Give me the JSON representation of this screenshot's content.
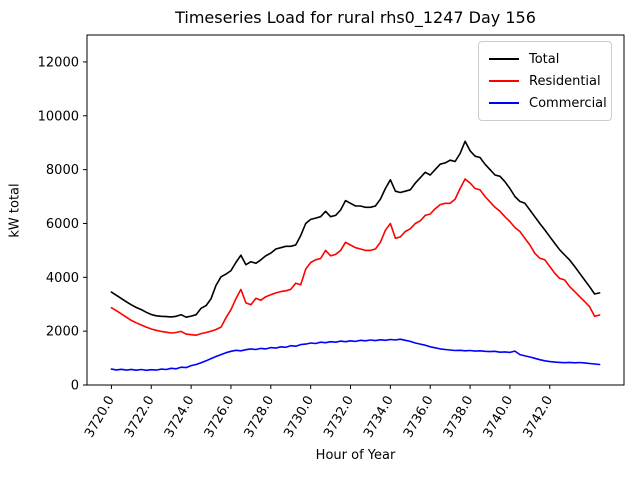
{
  "chart_data": {
    "type": "line",
    "title": "Timeseries Load for rural rhs0_1247  Day 156",
    "xlabel": "Hour of Year",
    "ylabel": "kW total",
    "xlim": [
      3718.775,
      3745.725
    ],
    "ylim": [
      0,
      13000
    ],
    "grid": false,
    "legend_position": "upper right",
    "xticks": [
      3720,
      3722,
      3724,
      3726,
      3728,
      3730,
      3732,
      3734,
      3736,
      3738,
      3740,
      3742
    ],
    "xtick_labels": [
      "3720.0",
      "3722.0",
      "3724.0",
      "3726.0",
      "3728.0",
      "3730.0",
      "3732.0",
      "3734.0",
      "3736.0",
      "3738.0",
      "3740.0",
      "3742.0"
    ],
    "yticks": [
      0,
      2000,
      4000,
      6000,
      8000,
      10000,
      12000
    ],
    "ytick_labels": [
      "0",
      "2000",
      "4000",
      "6000",
      "8000",
      "10000",
      "12000"
    ],
    "x": [
      3720.0,
      3720.25,
      3720.5,
      3720.75,
      3721.0,
      3721.25,
      3721.5,
      3721.75,
      3722.0,
      3722.25,
      3722.5,
      3722.75,
      3723.0,
      3723.25,
      3723.5,
      3723.75,
      3724.0,
      3724.25,
      3724.5,
      3724.75,
      3725.0,
      3725.25,
      3725.5,
      3725.75,
      3726.0,
      3726.25,
      3726.5,
      3726.75,
      3727.0,
      3727.25,
      3727.5,
      3727.75,
      3728.0,
      3728.25,
      3728.5,
      3728.75,
      3729.0,
      3729.25,
      3729.5,
      3729.75,
      3730.0,
      3730.25,
      3730.5,
      3730.75,
      3731.0,
      3731.25,
      3731.5,
      3731.75,
      3732.0,
      3732.25,
      3732.5,
      3732.75,
      3733.0,
      3733.25,
      3733.5,
      3733.75,
      3734.0,
      3734.25,
      3734.5,
      3734.75,
      3735.0,
      3735.25,
      3735.5,
      3735.75,
      3736.0,
      3736.25,
      3736.5,
      3736.75,
      3737.0,
      3737.25,
      3737.5,
      3737.75,
      3738.0,
      3738.25,
      3738.5,
      3738.75,
      3739.0,
      3739.25,
      3739.5,
      3739.75,
      3740.0,
      3740.25,
      3740.5,
      3740.75,
      3741.0,
      3741.25,
      3741.5,
      3741.75,
      3742.0,
      3742.25,
      3742.5,
      3742.75,
      3743.0,
      3743.25,
      3743.5,
      3743.75,
      3744.0,
      3744.25,
      3744.5
    ],
    "series": [
      {
        "name": "Total",
        "color": "#000000",
        "values": [
          3450,
          3330,
          3210,
          3090,
          2980,
          2880,
          2800,
          2700,
          2620,
          2570,
          2550,
          2540,
          2530,
          2550,
          2610,
          2520,
          2560,
          2610,
          2850,
          2950,
          3200,
          3700,
          4020,
          4120,
          4250,
          4550,
          4820,
          4470,
          4580,
          4520,
          4650,
          4800,
          4900,
          5050,
          5100,
          5150,
          5150,
          5200,
          5550,
          6000,
          6150,
          6200,
          6250,
          6450,
          6250,
          6300,
          6500,
          6850,
          6750,
          6650,
          6650,
          6600,
          6600,
          6650,
          6900,
          7300,
          7620,
          7200,
          7150,
          7200,
          7250,
          7500,
          7700,
          7900,
          7800,
          8000,
          8200,
          8250,
          8350,
          8300,
          8600,
          9050,
          8700,
          8500,
          8450,
          8200,
          8000,
          7800,
          7750,
          7550,
          7300,
          7000,
          6820,
          6750,
          6500,
          6250,
          6000,
          5760,
          5510,
          5260,
          5020,
          4830,
          4640,
          4400,
          4150,
          3900,
          3650,
          3380,
          3420
        ]
      },
      {
        "name": "Residential",
        "color": "#ff0000",
        "values": [
          2870,
          2760,
          2640,
          2520,
          2400,
          2310,
          2230,
          2150,
          2080,
          2030,
          1990,
          1960,
          1930,
          1950,
          1990,
          1890,
          1870,
          1850,
          1910,
          1950,
          2000,
          2060,
          2150,
          2500,
          2800,
          3200,
          3550,
          3050,
          2980,
          3220,
          3150,
          3280,
          3350,
          3420,
          3470,
          3500,
          3550,
          3780,
          3720,
          4300,
          4550,
          4650,
          4700,
          5000,
          4800,
          4850,
          5000,
          5300,
          5200,
          5100,
          5050,
          5000,
          5000,
          5050,
          5300,
          5750,
          6000,
          5450,
          5500,
          5700,
          5800,
          6000,
          6100,
          6300,
          6350,
          6550,
          6700,
          6750,
          6750,
          6900,
          7300,
          7650,
          7500,
          7300,
          7250,
          7000,
          6800,
          6600,
          6450,
          6250,
          6070,
          5850,
          5700,
          5450,
          5200,
          4890,
          4710,
          4650,
          4400,
          4150,
          3960,
          3900,
          3650,
          3470,
          3280,
          3100,
          2910,
          2550,
          2600
        ]
      },
      {
        "name": "Commercial",
        "color": "#0000ff",
        "values": [
          590,
          560,
          585,
          555,
          580,
          550,
          575,
          545,
          570,
          555,
          590,
          575,
          620,
          600,
          660,
          645,
          720,
          760,
          830,
          900,
          980,
          1060,
          1130,
          1200,
          1250,
          1290,
          1270,
          1310,
          1340,
          1320,
          1360,
          1340,
          1390,
          1370,
          1420,
          1400,
          1460,
          1440,
          1500,
          1520,
          1560,
          1540,
          1590,
          1570,
          1610,
          1590,
          1630,
          1610,
          1640,
          1620,
          1660,
          1640,
          1670,
          1650,
          1680,
          1660,
          1690,
          1670,
          1700,
          1660,
          1620,
          1560,
          1520,
          1480,
          1420,
          1380,
          1340,
          1320,
          1300,
          1280,
          1290,
          1270,
          1280,
          1260,
          1270,
          1250,
          1240,
          1250,
          1220,
          1230,
          1210,
          1260,
          1130,
          1080,
          1040,
          990,
          940,
          900,
          870,
          850,
          840,
          830,
          840,
          825,
          835,
          820,
          800,
          780,
          760
        ]
      }
    ]
  }
}
